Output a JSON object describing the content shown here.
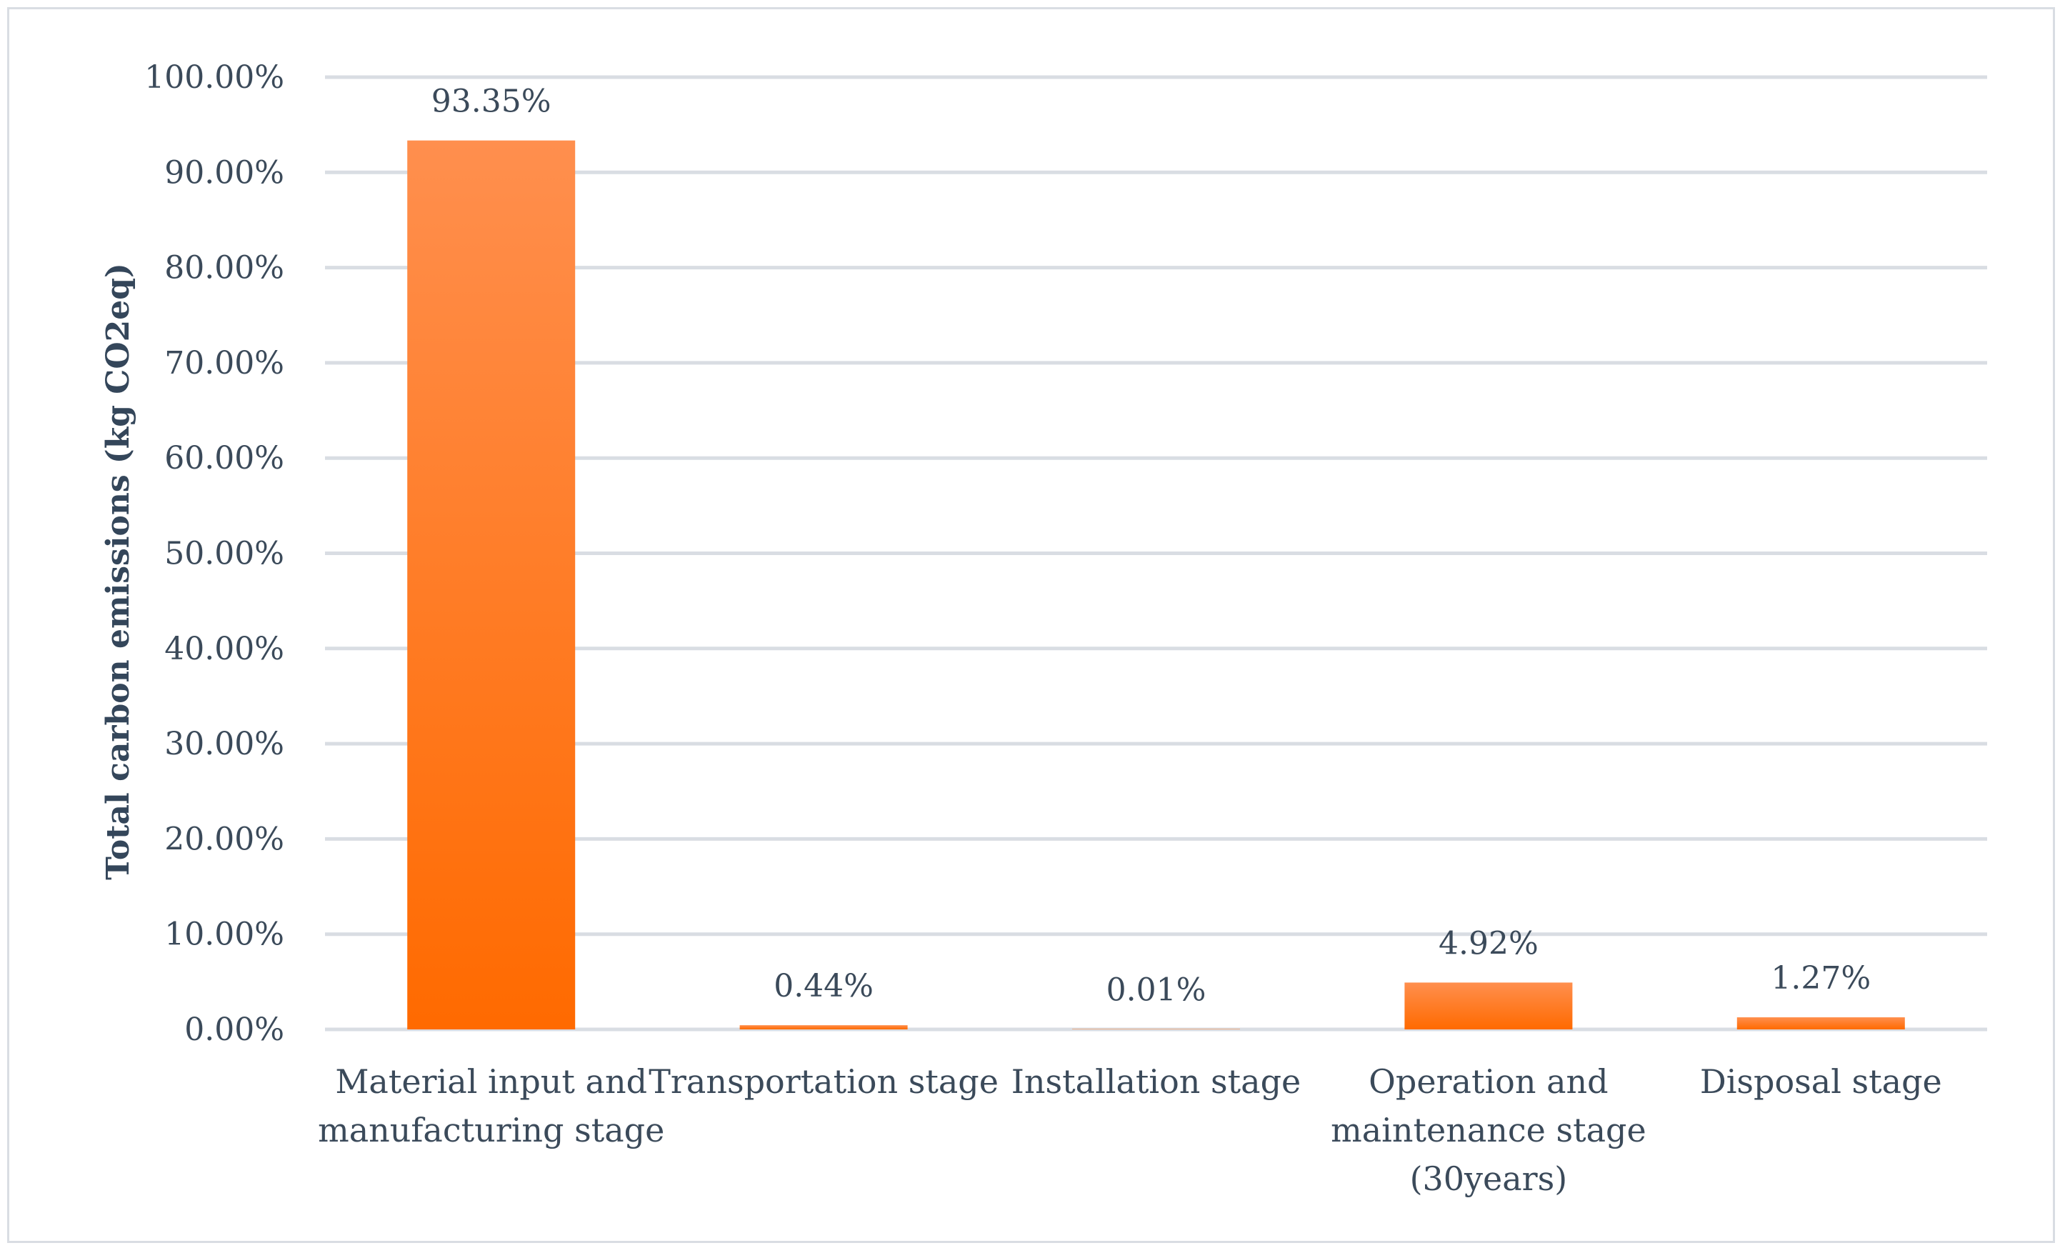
{
  "chart_data": {
    "type": "bar",
    "title": "",
    "xlabel": "",
    "ylabel": "Total carbon emissions (kg CO2eq)",
    "ylim": [
      0,
      100
    ],
    "yticks": [
      "0.00%",
      "10.00%",
      "20.00%",
      "30.00%",
      "40.00%",
      "50.00%",
      "60.00%",
      "70.00%",
      "80.00%",
      "90.00%",
      "100.00%"
    ],
    "grid": true,
    "legend": "none",
    "categories": [
      [
        "Material input and",
        "manufacturing stage"
      ],
      [
        "Transportation stage"
      ],
      [
        "Installation stage"
      ],
      [
        "Operation and",
        "maintenance stage",
        "(30years)"
      ],
      [
        "Disposal stage"
      ]
    ],
    "values": [
      93.35,
      0.44,
      0.01,
      4.92,
      1.27
    ],
    "data_labels": [
      "93.35%",
      "0.44%",
      "0.01%",
      "4.92%",
      "1.27%"
    ],
    "colors": {
      "bar_top": "#ff8f4e",
      "bar_bottom": "#ff6a00",
      "grid": "#d9dde3",
      "text": "#3b4a5a"
    }
  }
}
